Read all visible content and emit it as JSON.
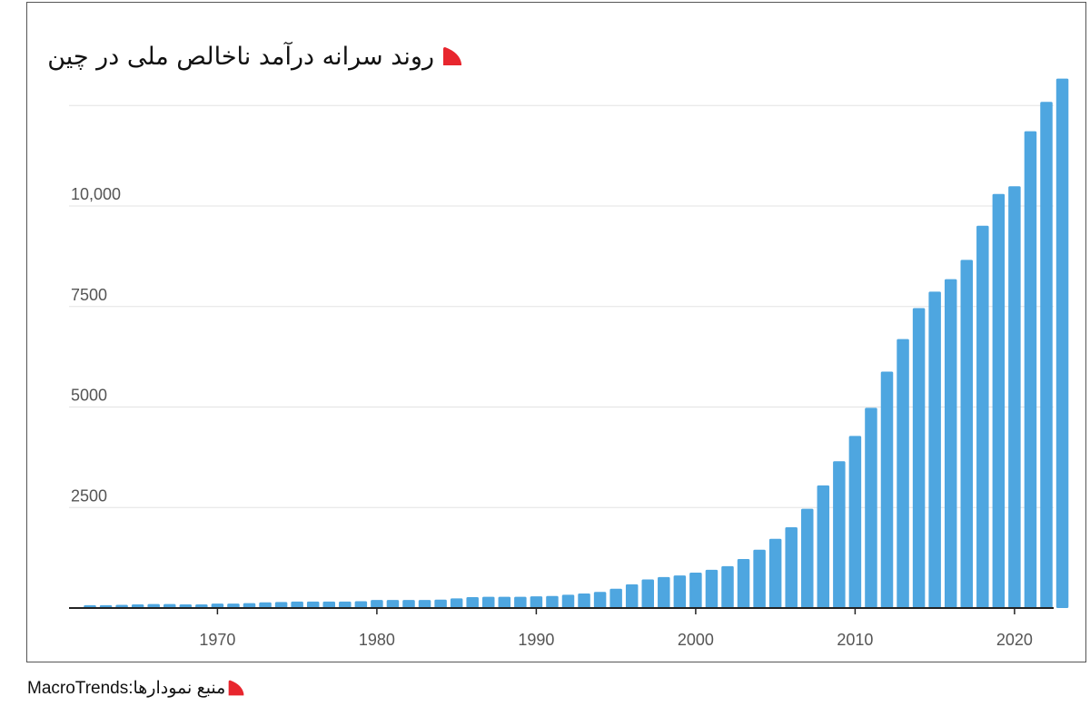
{
  "chart_title": "روند سرانه درآمد ناخالص ملی  در چین",
  "source_text": "منبع نمودارها:MacroTrends",
  "colors": {
    "bar": "#4ea6e0",
    "accent": "#e8262e",
    "grid": "#e3e3e3",
    "axis": "#222222",
    "tick_text": "#555555"
  },
  "chart_data": {
    "type": "bar",
    "title": "روند سرانه درآمد ناخالص ملی  در چین",
    "xlabel": "",
    "ylabel": "",
    "ylim": [
      0,
      12500
    ],
    "yticks": [
      2500,
      5000,
      7500,
      10000,
      12500
    ],
    "ytick_labels": [
      "2500",
      "5000",
      "7500",
      "10,000",
      ""
    ],
    "xticks": [
      1970,
      1980,
      1990,
      2000,
      2010,
      2020
    ],
    "grid": true,
    "categories": [
      1962,
      1963,
      1964,
      1965,
      1966,
      1967,
      1968,
      1969,
      1970,
      1971,
      1972,
      1973,
      1974,
      1975,
      1976,
      1977,
      1978,
      1979,
      1980,
      1981,
      1982,
      1983,
      1984,
      1985,
      1986,
      1987,
      1988,
      1989,
      1990,
      1991,
      1992,
      1993,
      1994,
      1995,
      1996,
      1997,
      1998,
      1999,
      2000,
      2001,
      2002,
      2003,
      2004,
      2005,
      2006,
      2007,
      2008,
      2009,
      2010,
      2011,
      2012,
      2013,
      2014,
      2015,
      2016,
      2017,
      2018,
      2019,
      2020,
      2021,
      2022,
      2023
    ],
    "values": [
      70,
      70,
      80,
      90,
      100,
      100,
      90,
      90,
      110,
      110,
      120,
      140,
      150,
      160,
      160,
      160,
      160,
      170,
      200,
      200,
      200,
      200,
      210,
      240,
      270,
      280,
      280,
      280,
      290,
      300,
      330,
      360,
      400,
      480,
      590,
      710,
      770,
      810,
      880,
      950,
      1040,
      1220,
      1450,
      1720,
      2010,
      2470,
      3050,
      3650,
      4280,
      4980,
      5880,
      6690,
      7460,
      7870,
      8180,
      8660,
      9510,
      10300,
      10490,
      11860,
      12590,
      13170
    ]
  }
}
